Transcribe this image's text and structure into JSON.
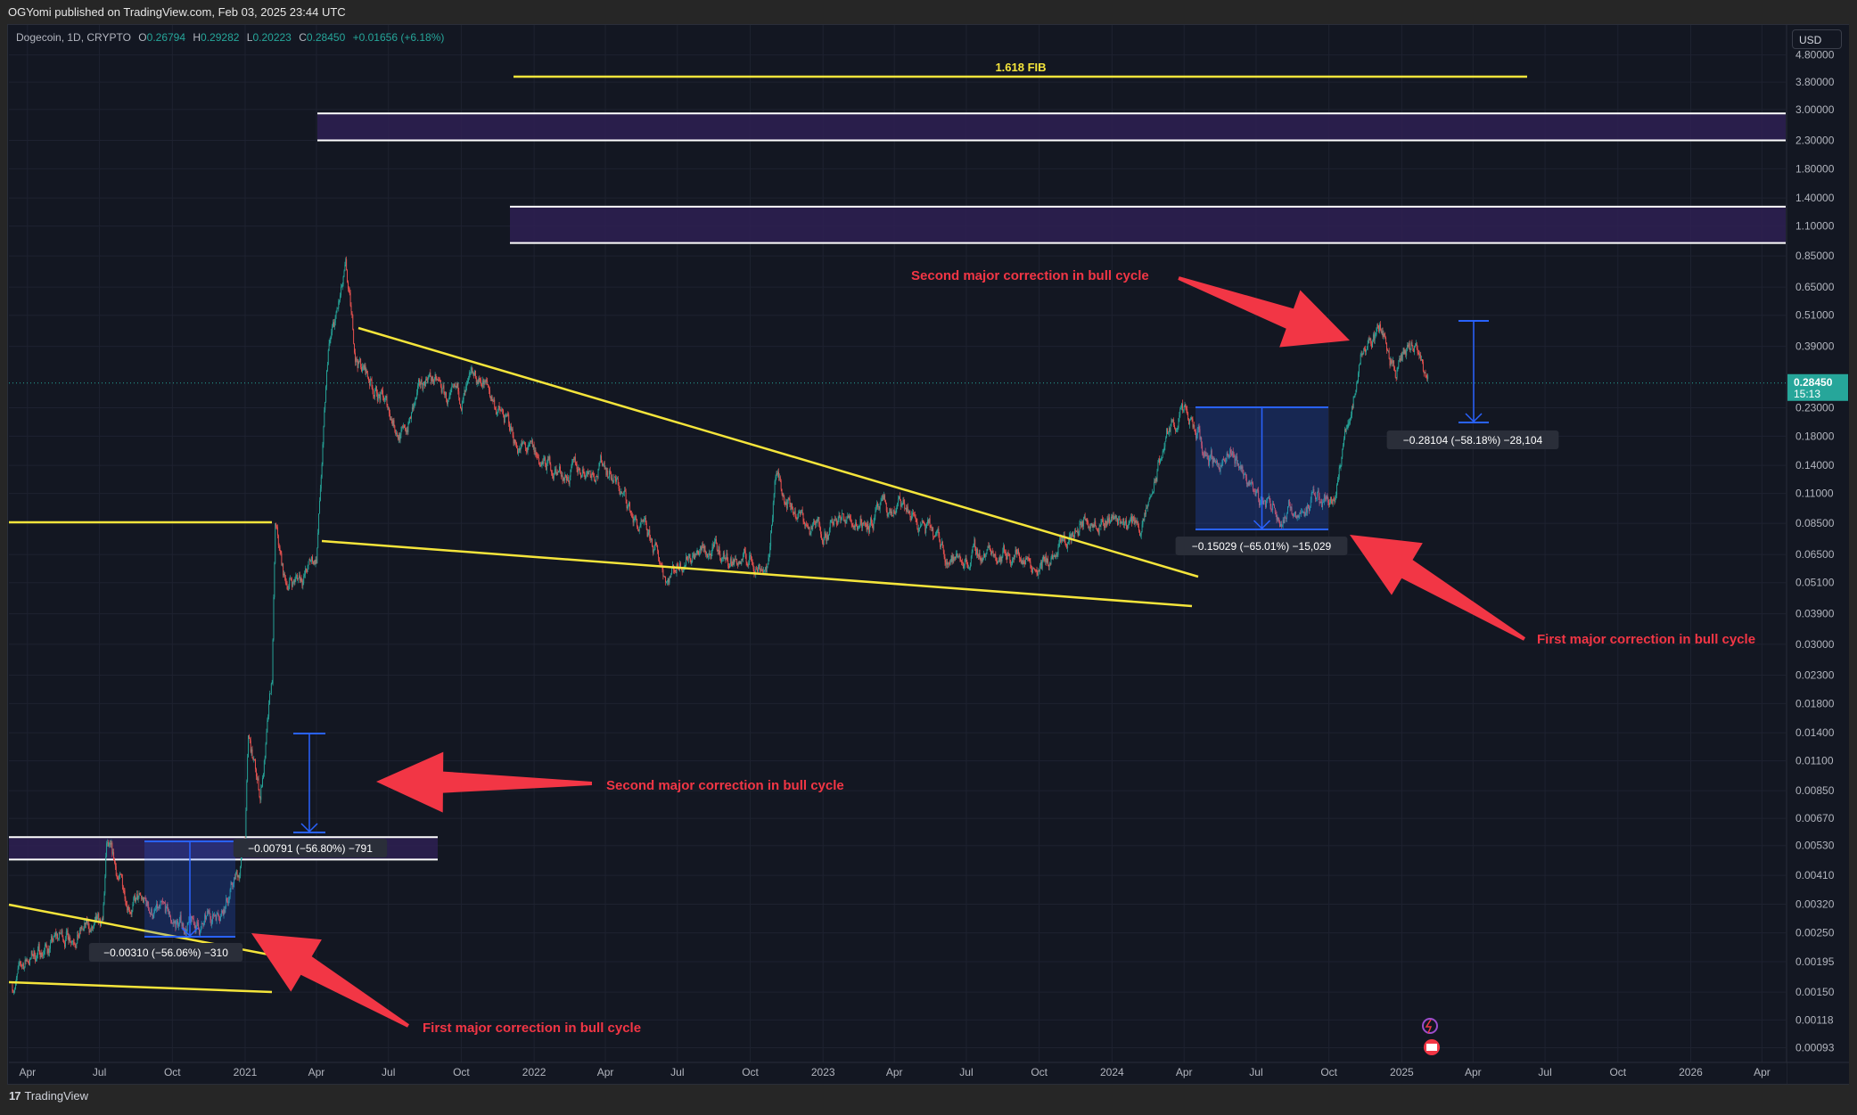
{
  "header": {
    "published": "OGYomi published on TradingView.com, Feb 03, 2025 23:44 UTC"
  },
  "legend": {
    "symbol": "Dogecoin, 1D, CRYPTO",
    "open_label": "O",
    "open": "0.26794",
    "high_label": "H",
    "high": "0.29282",
    "low_label": "L",
    "low": "0.20223",
    "close_label": "C",
    "close": "0.28450",
    "change": "+0.01656 (+6.18%)"
  },
  "price_axis": {
    "currency": "USD",
    "last_price": "0.28450",
    "countdown": "15:13"
  },
  "footer": {
    "brand": "TradingView",
    "logo": "17"
  },
  "colors": {
    "background": "#131722",
    "up": "#26a69a",
    "down": "#ef5350",
    "trendline": "#f5e53b",
    "zone": "#2e2052",
    "measure": "#2962ff",
    "annotation": "#f23645"
  },
  "icons": [
    "tradingview-logo-icon",
    "lightning-icon",
    "flag-us-icon"
  ],
  "chart_data": {
    "type": "candlestick",
    "title": "Dogecoin, 1D, CRYPTO",
    "scale": "log",
    "ylim": [
      0.00085,
      5.0
    ],
    "grid": true,
    "y_ticks": [
      "4.80000",
      "3.80000",
      "3.00000",
      "2.30000",
      "1.80000",
      "1.40000",
      "1.10000",
      "0.85000",
      "0.65000",
      "0.51000",
      "0.39000",
      "0.23000",
      "0.18000",
      "0.14000",
      "0.11000",
      "0.08500",
      "0.06500",
      "0.05100",
      "0.03900",
      "0.03000",
      "0.02300",
      "0.01800",
      "0.01400",
      "0.01100",
      "0.00850",
      "0.00670",
      "0.00530",
      "0.00410",
      "0.00320",
      "0.00250",
      "0.00195",
      "0.00150",
      "0.00118",
      "0.00093"
    ],
    "x_ticks": [
      {
        "date": "2020-04-01",
        "label": "Apr"
      },
      {
        "date": "2020-07-01",
        "label": "Jul"
      },
      {
        "date": "2020-10-01",
        "label": "Oct"
      },
      {
        "date": "2021-01-01",
        "label": "2021"
      },
      {
        "date": "2021-04-01",
        "label": "Apr"
      },
      {
        "date": "2021-07-01",
        "label": "Jul"
      },
      {
        "date": "2021-10-01",
        "label": "Oct"
      },
      {
        "date": "2022-01-01",
        "label": "2022"
      },
      {
        "date": "2022-04-01",
        "label": "Apr"
      },
      {
        "date": "2022-07-01",
        "label": "Jul"
      },
      {
        "date": "2022-10-01",
        "label": "Oct"
      },
      {
        "date": "2023-01-01",
        "label": "2023"
      },
      {
        "date": "2023-04-01",
        "label": "Apr"
      },
      {
        "date": "2023-07-01",
        "label": "Jul"
      },
      {
        "date": "2023-10-01",
        "label": "Oct"
      },
      {
        "date": "2024-01-01",
        "label": "2024"
      },
      {
        "date": "2024-04-01",
        "label": "Apr"
      },
      {
        "date": "2024-07-01",
        "label": "Jul"
      },
      {
        "date": "2024-10-01",
        "label": "Oct"
      },
      {
        "date": "2025-01-01",
        "label": "2025"
      },
      {
        "date": "2025-04-01",
        "label": "Apr"
      },
      {
        "date": "2025-07-01",
        "label": "Jul"
      },
      {
        "date": "2025-10-01",
        "label": "Oct"
      },
      {
        "date": "2026-01-01",
        "label": "2026"
      },
      {
        "date": "2026-04-01",
        "label": "Apr"
      }
    ],
    "price_path": [
      [
        "2020-03-13",
        0.0016
      ],
      [
        "2020-04-01",
        0.002
      ],
      [
        "2020-06-01",
        0.0026
      ],
      [
        "2020-07-05",
        0.0025
      ],
      [
        "2020-07-10",
        0.005
      ],
      [
        "2020-08-01",
        0.0035
      ],
      [
        "2020-10-01",
        0.0027
      ],
      [
        "2020-11-10",
        0.0026
      ],
      [
        "2020-12-10",
        0.0035
      ],
      [
        "2020-12-25",
        0.0042
      ],
      [
        "2021-01-01",
        0.0058
      ],
      [
        "2021-01-05",
        0.013
      ],
      [
        "2021-01-20",
        0.008
      ],
      [
        "2021-02-04",
        0.021
      ],
      [
        "2021-02-08",
        0.078
      ],
      [
        "2021-02-20",
        0.05
      ],
      [
        "2021-03-15",
        0.055
      ],
      [
        "2021-04-01",
        0.063
      ],
      [
        "2021-04-16",
        0.36
      ],
      [
        "2021-05-08",
        0.7
      ],
      [
        "2021-05-20",
        0.36
      ],
      [
        "2021-06-15",
        0.27
      ],
      [
        "2021-07-20",
        0.18
      ],
      [
        "2021-08-20",
        0.31
      ],
      [
        "2021-09-20",
        0.23
      ],
      [
        "2021-10-28",
        0.29
      ],
      [
        "2021-12-10",
        0.17
      ],
      [
        "2022-01-10",
        0.14
      ],
      [
        "2022-02-15",
        0.13
      ],
      [
        "2022-04-01",
        0.145
      ],
      [
        "2022-05-10",
        0.085
      ],
      [
        "2022-06-18",
        0.055
      ],
      [
        "2022-07-15",
        0.068
      ],
      [
        "2022-09-15",
        0.062
      ],
      [
        "2022-10-25",
        0.06
      ],
      [
        "2022-11-01",
        0.13
      ],
      [
        "2022-12-15",
        0.08
      ],
      [
        "2023-02-10",
        0.088
      ],
      [
        "2023-04-15",
        0.095
      ],
      [
        "2023-06-15",
        0.062
      ],
      [
        "2023-08-15",
        0.068
      ],
      [
        "2023-10-15",
        0.06
      ],
      [
        "2023-12-10",
        0.095
      ],
      [
        "2024-02-10",
        0.083
      ],
      [
        "2024-03-10",
        0.18
      ],
      [
        "2024-03-28",
        0.22
      ],
      [
        "2024-05-01",
        0.15
      ],
      [
        "2024-06-10",
        0.14
      ],
      [
        "2024-07-05",
        0.105
      ],
      [
        "2024-08-05",
        0.095
      ],
      [
        "2024-09-10",
        0.102
      ],
      [
        "2024-10-10",
        0.115
      ],
      [
        "2024-11-12",
        0.38
      ],
      [
        "2024-12-07",
        0.46
      ],
      [
        "2024-12-25",
        0.32
      ],
      [
        "2025-01-18",
        0.39
      ],
      [
        "2025-02-02",
        0.27
      ],
      [
        "2025-02-03",
        0.2845
      ]
    ],
    "horizontal_levels": [
      {
        "label": "1.618 FIB",
        "price": 3.7
      },
      {
        "price": 0.085
      }
    ],
    "zones": [
      {
        "from": 2.3,
        "to": 2.9
      },
      {
        "from": 0.95,
        "to": 1.3
      },
      {
        "from": 0.0047,
        "to": 0.0057
      }
    ],
    "measurements": [
      {
        "label": "−0.00310 (−56.06%) −310"
      },
      {
        "label": "−0.00791 (−56.80%) −791"
      },
      {
        "label": "−0.15029 (−65.01%) −15,029"
      },
      {
        "label": "−0.28104 (−58.18%) −28,104"
      }
    ],
    "annotations": [
      {
        "text": "Second major correction in bull cycle"
      },
      {
        "text": "First major correction in bull cycle"
      },
      {
        "text": "Second major correction in bull cycle"
      },
      {
        "text": "First major correction in bull cycle"
      }
    ]
  }
}
